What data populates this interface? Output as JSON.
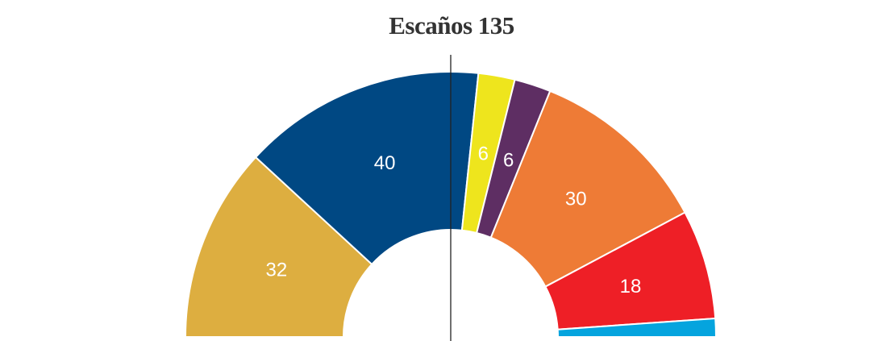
{
  "chart_data": {
    "type": "pie",
    "subtype": "hemicycle",
    "title": "Escaños 135",
    "total_seats": 135,
    "start_angle_deg": 180,
    "end_angle_deg": 0,
    "majority_line": true,
    "slices": [
      {
        "value": 32,
        "label": "32",
        "color": "#DDAE40"
      },
      {
        "value": 40,
        "label": "40",
        "color": "#004883"
      },
      {
        "value": 6,
        "label": "6",
        "color": "#EEE51D"
      },
      {
        "value": 6,
        "label": "6",
        "color": "#5E2E63"
      },
      {
        "value": 30,
        "label": "30",
        "color": "#EE7B36"
      },
      {
        "value": 18,
        "label": "18",
        "color": "#EE1F26"
      },
      {
        "value": 3,
        "label": "",
        "color": "#05A4DE"
      }
    ]
  }
}
